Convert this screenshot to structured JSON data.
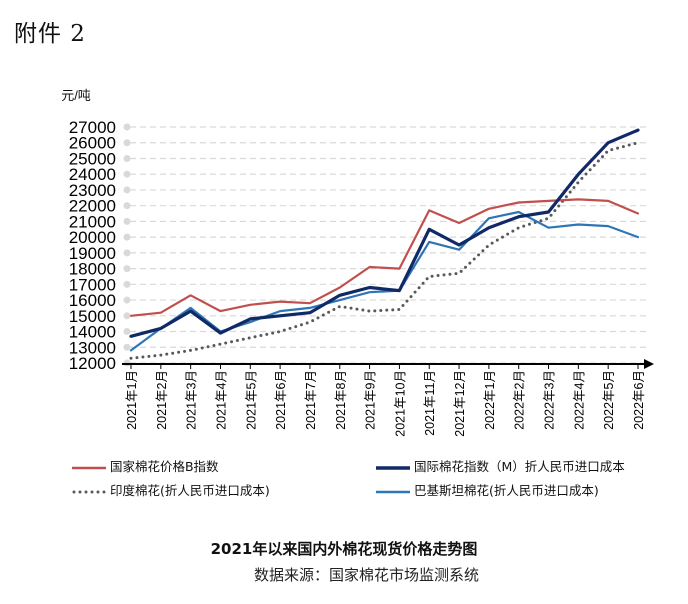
{
  "attachment_label": "附件 2",
  "title": "2021年以来国内外棉花现货价格走势图",
  "source": "数据来源：国家棉花市场监测系统",
  "chart_data": {
    "type": "line",
    "ylabel": "元/吨",
    "ylim": [
      12000,
      27000
    ],
    "y_ticks": [
      12000,
      13000,
      14000,
      15000,
      16000,
      17000,
      18000,
      19000,
      20000,
      21000,
      22000,
      23000,
      24000,
      25000,
      26000,
      27000
    ],
    "x": [
      "2021年1月",
      "2021年2月",
      "2021年3月",
      "2021年4月",
      "2021年5月",
      "2021年6月",
      "2021年7月",
      "2021年8月",
      "2021年9月",
      "2021年10月",
      "2021年11月",
      "2021年12月",
      "2022年1月",
      "2022年2月",
      "2022年3月",
      "2022年4月",
      "2022年5月",
      "2022年6月"
    ],
    "grid": true,
    "legend_position": "bottom",
    "series": [
      {
        "name": "国家棉花价格B指数",
        "color": "#c0504d",
        "style": "solid",
        "values": [
          15000,
          15200,
          16300,
          15300,
          15700,
          15900,
          15800,
          16800,
          18100,
          18000,
          21700,
          20900,
          21800,
          22200,
          22300,
          22400,
          22300,
          21500
        ]
      },
      {
        "name": "国际棉花指数（M）折人民币进口成本",
        "color": "#0f2a66",
        "style": "solid",
        "values": [
          13700,
          14200,
          15300,
          13900,
          14800,
          15000,
          15200,
          16300,
          16800,
          16600,
          20500,
          19500,
          20600,
          21300,
          21600,
          24000,
          26000,
          26800
        ]
      },
      {
        "name": "印度棉花(折人民币进口成本)",
        "color": "#595959",
        "style": "dotted",
        "values": [
          12300,
          12500,
          12800,
          13200,
          13600,
          14000,
          14600,
          15600,
          15300,
          15400,
          17500,
          17700,
          19500,
          20600,
          21200,
          23500,
          25500,
          26000
        ]
      },
      {
        "name": "巴基斯坦棉花(折人民币进口成本)",
        "color": "#2e75b6",
        "style": "solid",
        "values": [
          12800,
          14200,
          15500,
          14000,
          14600,
          15300,
          15500,
          16000,
          16500,
          16600,
          19700,
          19200,
          21200,
          21600,
          20600,
          20800,
          20700,
          20000
        ]
      }
    ]
  }
}
